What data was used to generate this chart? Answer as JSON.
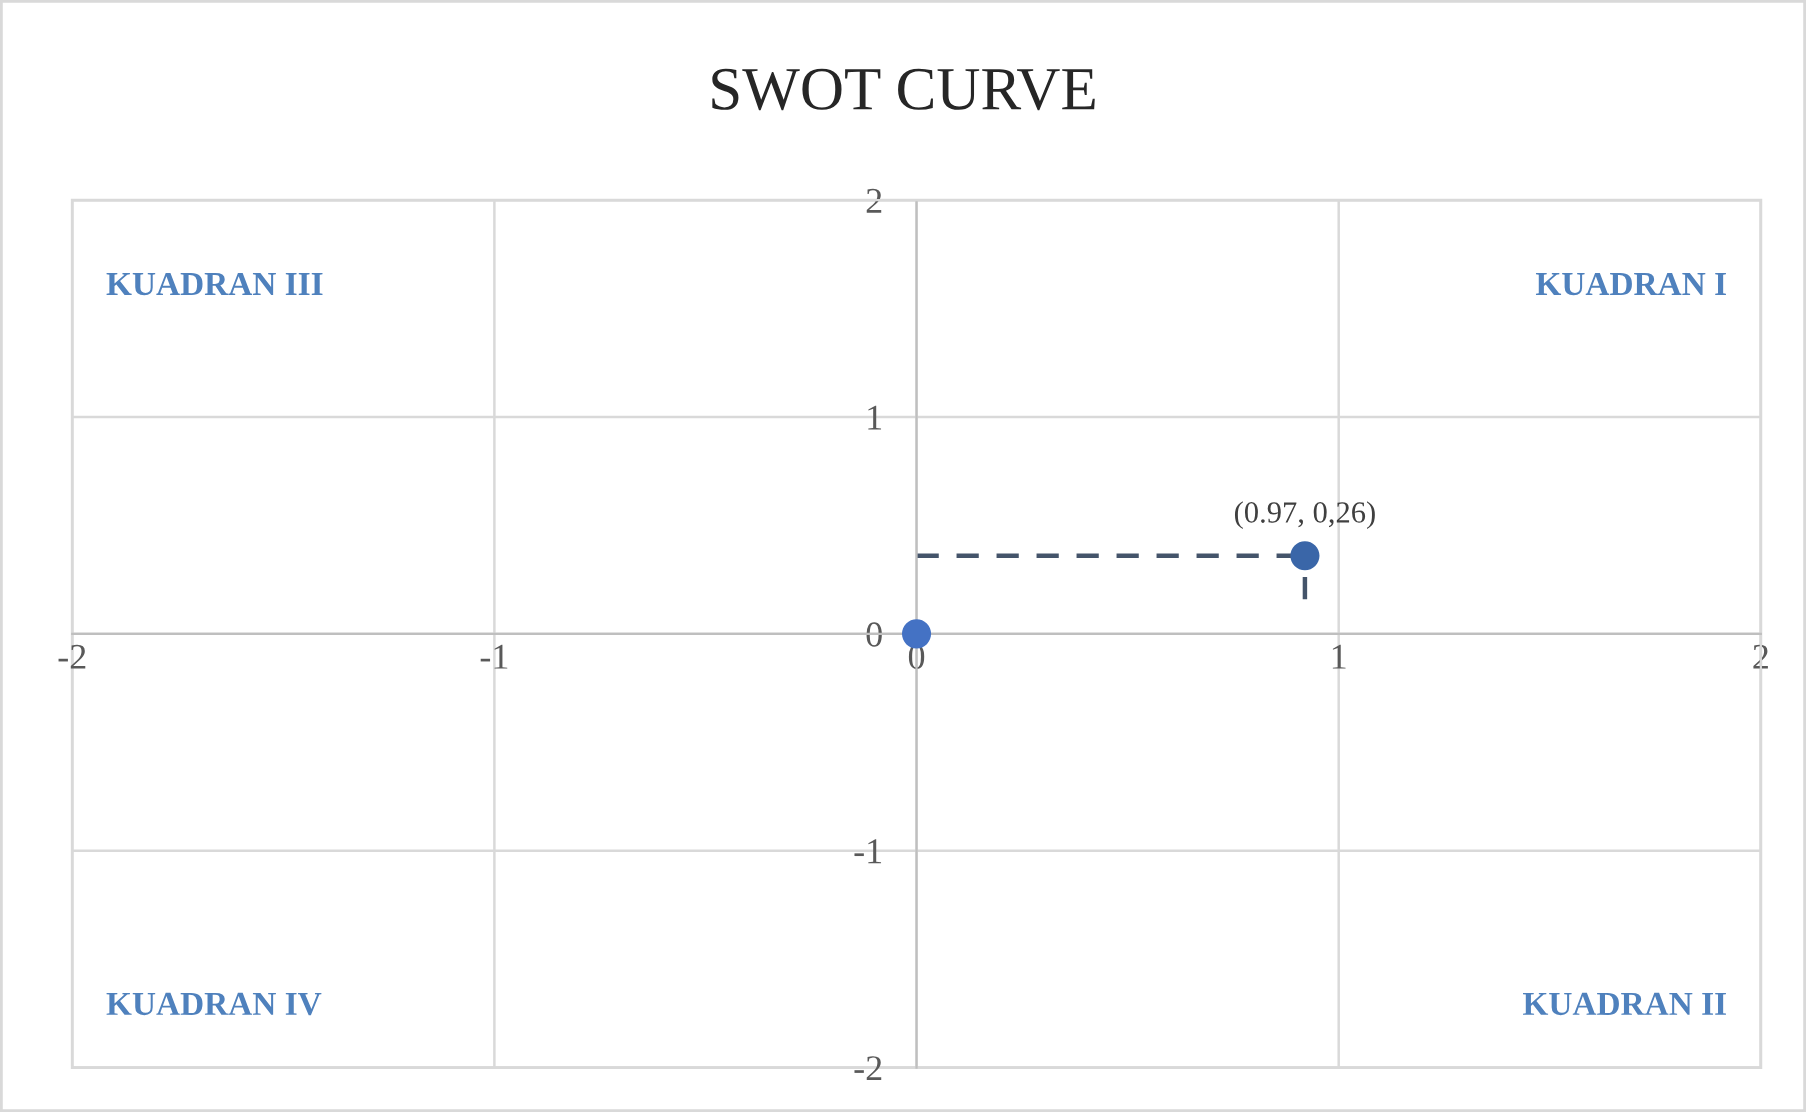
{
  "chart_data": {
    "type": "scatter",
    "title": "SWOT CURVE",
    "x": [
      0,
      0.92
    ],
    "values": [
      0,
      0.36
    ],
    "colors": [
      "#4472c4",
      "#3a66a8"
    ],
    "xerrors": [
      null,
      [
        0,
        0.92
      ]
    ],
    "errors": [
      null,
      [
        0.16,
        0.36
      ]
    ],
    "line_style": "dashed",
    "marker": "circle",
    "xlim": [
      -2,
      2
    ],
    "ylim": [
      -2,
      2
    ],
    "xticks": [
      -2,
      -1,
      0,
      1,
      2
    ],
    "yticks": [
      -2,
      -1,
      0,
      1,
      2
    ],
    "grid": true,
    "annotations": [
      "KUADRAN III",
      "KUADRAN I",
      "KUADRAN IV",
      "KUADRAN II",
      {
        "text": "(0.97, 0,26)",
        "x": 0.92,
        "y": 0.36
      }
    ]
  }
}
